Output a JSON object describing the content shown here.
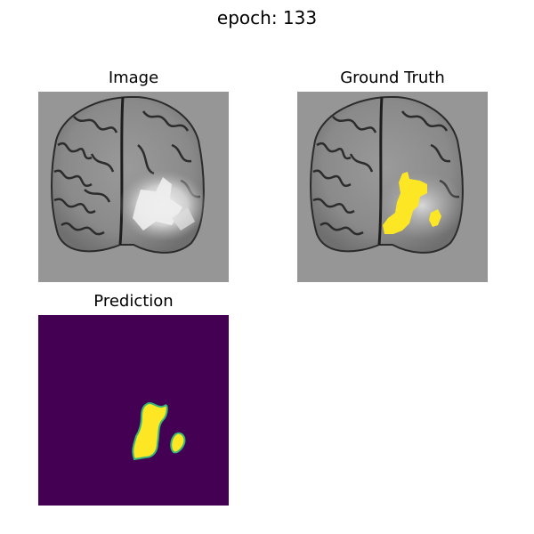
{
  "figure": {
    "suptitle": "epoch: 133",
    "panels": [
      {
        "title": "Image",
        "content": "brain-mri-slice"
      },
      {
        "title": "Ground Truth",
        "content": "mri-slice-with-yellow-lesion-mask"
      },
      {
        "title": "Prediction",
        "content": "predicted-lesion-mask"
      }
    ]
  },
  "colors": {
    "background_gray": "#969696",
    "mask_yellow": "#fde725",
    "mask_purple": "#440154",
    "mask_edge_teal": "#35b779"
  }
}
